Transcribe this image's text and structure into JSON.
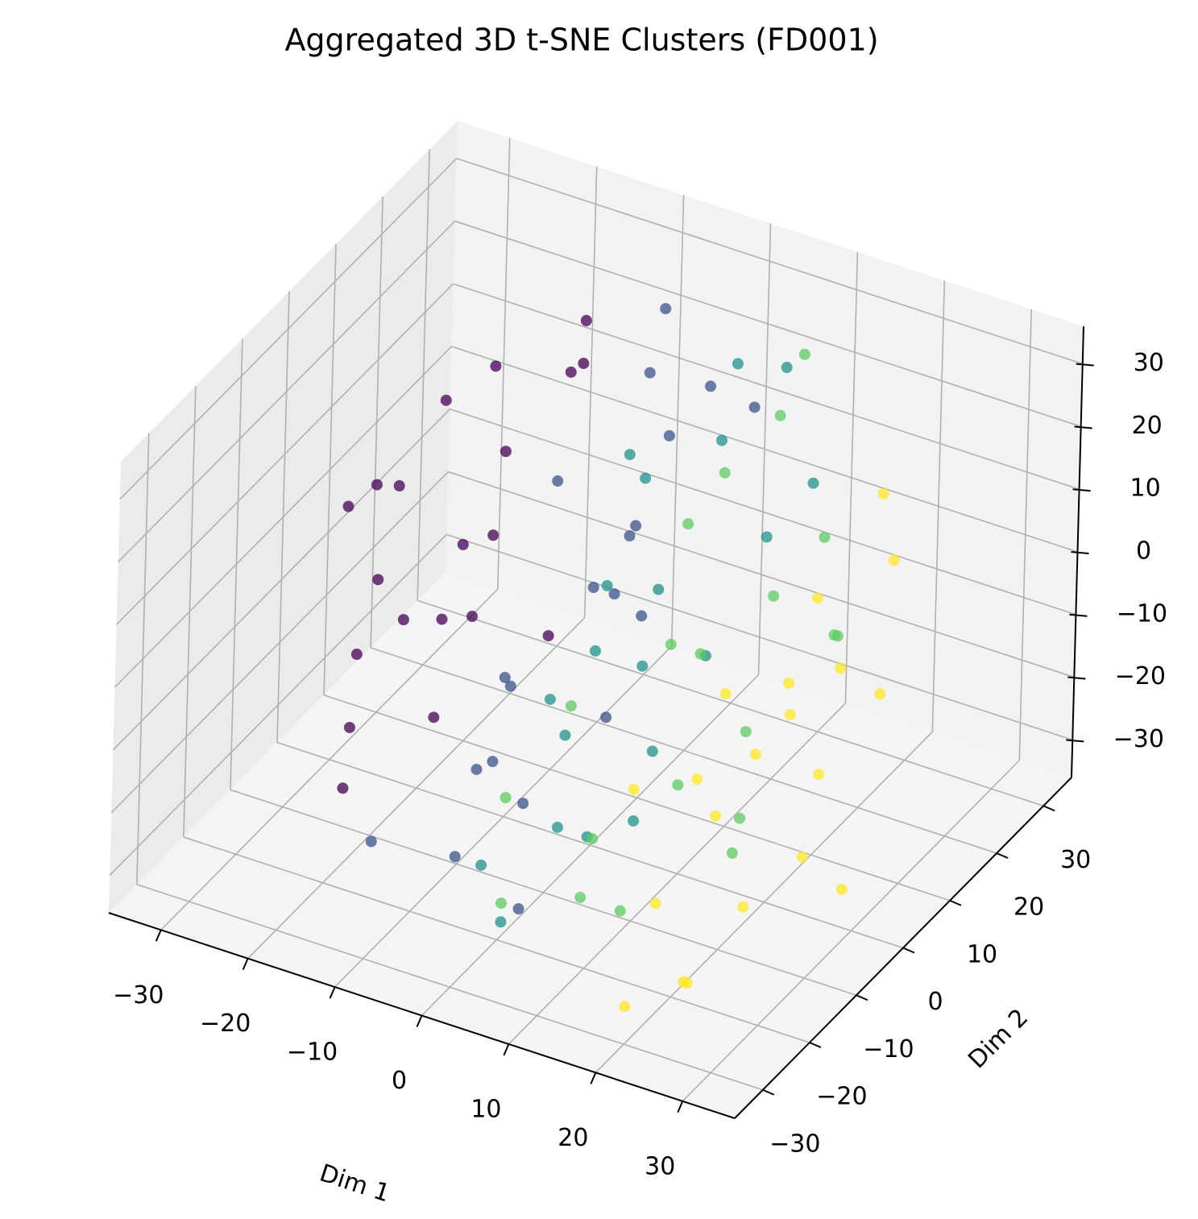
{
  "chart_data": {
    "type": "scatter3d",
    "title": "Aggregated 3D t-SNE Clusters (FD001)",
    "xlabel": "Dim 1",
    "ylabel": "Dim 2",
    "xlim": [
      -36,
      36
    ],
    "ylim": [
      -36,
      36
    ],
    "zlim": [
      -36,
      36
    ],
    "xticks": [
      {
        "value": -30,
        "label": "−30"
      },
      {
        "value": -20,
        "label": "−20"
      },
      {
        "value": -10,
        "label": "−10"
      },
      0,
      10,
      20,
      30
    ],
    "yticks": [
      {
        "value": -30,
        "label": "−30"
      },
      {
        "value": -20,
        "label": "−20"
      },
      {
        "value": -10,
        "label": "−10"
      },
      0,
      10,
      20,
      30
    ],
    "zticks": [
      {
        "value": -30,
        "label": "−30"
      },
      {
        "value": -20,
        "label": "−20"
      },
      {
        "value": -10,
        "label": "−10"
      },
      0,
      10,
      20,
      30
    ],
    "grid": true,
    "series": [
      {
        "color": "#440154",
        "x": [
          -28,
          -27,
          -26,
          -25,
          -24,
          -22,
          -20,
          -20,
          -18,
          -16,
          -15,
          -14,
          -12,
          -12,
          -10,
          -8,
          -18,
          -23,
          -15,
          -10
        ],
        "y": [
          5,
          8,
          -5,
          0,
          12,
          -10,
          15,
          -15,
          5,
          10,
          -5,
          20,
          0,
          -12,
          15,
          5,
          -20,
          2,
          25,
          -8
        ],
        "z": [
          5,
          3,
          10,
          -5,
          15,
          -8,
          20,
          -15,
          0,
          12,
          -3,
          18,
          8,
          -12,
          25,
          -10,
          -20,
          -12,
          22,
          2
        ]
      },
      {
        "color": "#3b528b",
        "x": [
          -10,
          -8,
          -5,
          -5,
          -3,
          0,
          0,
          2,
          -12,
          -6,
          4,
          -2,
          3,
          -8,
          5,
          1,
          -4,
          6,
          -1,
          2
        ],
        "y": [
          10,
          -10,
          20,
          -20,
          5,
          -15,
          15,
          0,
          -25,
          25,
          -5,
          12,
          18,
          -3,
          -25,
          8,
          -12,
          22,
          -20,
          3
        ],
        "z": [
          10,
          -20,
          22,
          -25,
          0,
          -18,
          18,
          5,
          -22,
          28,
          -10,
          5,
          25,
          -12,
          -25,
          -5,
          -2,
          20,
          -8,
          12
        ]
      },
      {
        "color": "#21918c",
        "x": [
          -5,
          0,
          2,
          5,
          8,
          -2,
          6,
          10,
          4,
          -6,
          12,
          8,
          0,
          14,
          3,
          10,
          7,
          -3,
          15,
          9
        ],
        "y": [
          0,
          10,
          -10,
          20,
          -5,
          -20,
          15,
          5,
          -15,
          18,
          -10,
          25,
          0,
          10,
          -25,
          -20,
          0,
          8,
          18,
          -8
        ],
        "z": [
          -15,
          15,
          -10,
          28,
          0,
          -25,
          20,
          -5,
          -20,
          10,
          -8,
          25,
          -5,
          12,
          -28,
          -15,
          8,
          -2,
          15,
          -22
        ]
      },
      {
        "color": "#5ec962",
        "x": [
          0,
          5,
          8,
          10,
          12,
          15,
          -2,
          18,
          14,
          6,
          20,
          10,
          16,
          3,
          22,
          12,
          24,
          8,
          18,
          25
        ],
        "y": [
          -5,
          10,
          -15,
          20,
          0,
          -10,
          -15,
          15,
          -20,
          5,
          -5,
          25,
          8,
          -25,
          10,
          -25,
          -15,
          12,
          -2,
          5
        ],
        "z": [
          -10,
          10,
          -20,
          22,
          0,
          -12,
          -18,
          10,
          -25,
          -5,
          -5,
          28,
          5,
          -25,
          0,
          -20,
          -15,
          18,
          -22,
          5
        ]
      },
      {
        "color": "#fde725",
        "x": [
          10,
          15,
          18,
          20,
          22,
          25,
          28,
          30,
          26,
          24,
          16,
          28,
          32,
          30,
          20,
          12,
          34,
          22,
          26,
          18
        ],
        "y": [
          -10,
          0,
          -20,
          10,
          -15,
          -5,
          0,
          -8,
          15,
          -25,
          5,
          -20,
          -15,
          5,
          -30,
          0,
          -10,
          20,
          -28,
          8
        ],
        "z": [
          -15,
          -5,
          -22,
          5,
          -10,
          0,
          5,
          -5,
          10,
          -28,
          -18,
          -18,
          -12,
          -2,
          -30,
          -20,
          -20,
          15,
          -25,
          -8
        ]
      }
    ]
  }
}
